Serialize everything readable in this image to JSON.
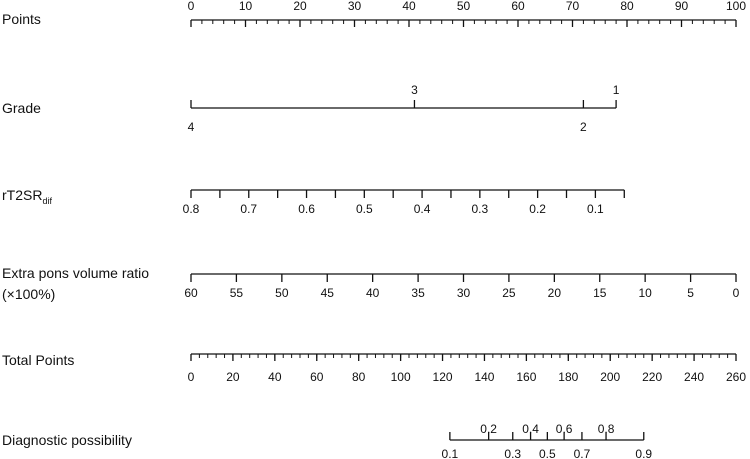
{
  "chart_data": {
    "type": "nomogram",
    "rows": [
      {
        "id": "points",
        "label": "Points",
        "ticks": [
          {
            "label": "0",
            "points": 0
          },
          {
            "label": "10",
            "points": 10
          },
          {
            "label": "20",
            "points": 20
          },
          {
            "label": "30",
            "points": 30
          },
          {
            "label": "40",
            "points": 40
          },
          {
            "label": "50",
            "points": 50
          },
          {
            "label": "60",
            "points": 60
          },
          {
            "label": "70",
            "points": 70
          },
          {
            "label": "80",
            "points": 80
          },
          {
            "label": "90",
            "points": 90
          },
          {
            "label": "100",
            "points": 100
          }
        ],
        "minor_step": 2
      },
      {
        "id": "grade",
        "label": "Grade",
        "ticks": [
          {
            "label": "4",
            "points": 0,
            "side": "below"
          },
          {
            "label": "3",
            "points": 41,
            "side": "above"
          },
          {
            "label": "2",
            "points": 72,
            "side": "below"
          },
          {
            "label": "1",
            "points": 78,
            "side": "above"
          }
        ]
      },
      {
        "id": "rt2sr",
        "label": "rT2SR",
        "label_sub": "dif",
        "ticks": [
          {
            "label": "0.8",
            "points": 0
          },
          {
            "label": "",
            "points": 5.3
          },
          {
            "label": "0.7",
            "points": 10.6
          },
          {
            "label": "",
            "points": 15.9
          },
          {
            "label": "0.6",
            "points": 21.2
          },
          {
            "label": "",
            "points": 26.5
          },
          {
            "label": "0.5",
            "points": 31.8
          },
          {
            "label": "",
            "points": 37.1
          },
          {
            "label": "0.4",
            "points": 42.4
          },
          {
            "label": "",
            "points": 47.7
          },
          {
            "label": "0.3",
            "points": 53
          },
          {
            "label": "",
            "points": 58.3
          },
          {
            "label": "0.2",
            "points": 63.6
          },
          {
            "label": "",
            "points": 68.9
          },
          {
            "label": "0.1",
            "points": 74.2
          },
          {
            "label": "",
            "points": 79.5
          }
        ]
      },
      {
        "id": "extra_pons",
        "label": "Extra pons volume ratio",
        "label_line2": "(×100%)",
        "ticks": [
          {
            "label": "60",
            "points": 0
          },
          {
            "label": "55",
            "points": 8.33
          },
          {
            "label": "50",
            "points": 16.67
          },
          {
            "label": "45",
            "points": 25
          },
          {
            "label": "40",
            "points": 33.33
          },
          {
            "label": "35",
            "points": 41.67
          },
          {
            "label": "30",
            "points": 50
          },
          {
            "label": "25",
            "points": 58.33
          },
          {
            "label": "20",
            "points": 66.67
          },
          {
            "label": "15",
            "points": 75
          },
          {
            "label": "10",
            "points": 83.33
          },
          {
            "label": "5",
            "points": 91.67
          },
          {
            "label": "0",
            "points": 100
          }
        ]
      },
      {
        "id": "total_points",
        "label": "Total Points",
        "ticks": [
          {
            "label": "0",
            "total": 0
          },
          {
            "label": "20",
            "total": 20
          },
          {
            "label": "40",
            "total": 40
          },
          {
            "label": "60",
            "total": 60
          },
          {
            "label": "80",
            "total": 80
          },
          {
            "label": "100",
            "total": 100
          },
          {
            "label": "120",
            "total": 120
          },
          {
            "label": "140",
            "total": 140
          },
          {
            "label": "160",
            "total": 160
          },
          {
            "label": "180",
            "total": 180
          },
          {
            "label": "200",
            "total": 200
          },
          {
            "label": "220",
            "total": 220
          },
          {
            "label": "240",
            "total": 240
          },
          {
            "label": "260",
            "total": 260
          }
        ],
        "minor_step": 4,
        "range": [
          0,
          260
        ]
      },
      {
        "id": "diagnostic",
        "label": "Diagnostic possibility",
        "ticks": [
          {
            "label": "0.1",
            "total": 123.5,
            "side": "below"
          },
          {
            "label": "0.2",
            "total": 142,
            "side": "above"
          },
          {
            "label": "0.3",
            "total": 153.5,
            "side": "below"
          },
          {
            "label": "0.4",
            "total": 162,
            "side": "above"
          },
          {
            "label": "0.5",
            "total": 170,
            "side": "below"
          },
          {
            "label": "0.6",
            "total": 178,
            "side": "above"
          },
          {
            "label": "0.7",
            "total": 186.5,
            "side": "below"
          },
          {
            "label": "0.8",
            "total": 198,
            "side": "above"
          },
          {
            "label": "0.9",
            "total": 216,
            "side": "below"
          }
        ]
      }
    ]
  }
}
